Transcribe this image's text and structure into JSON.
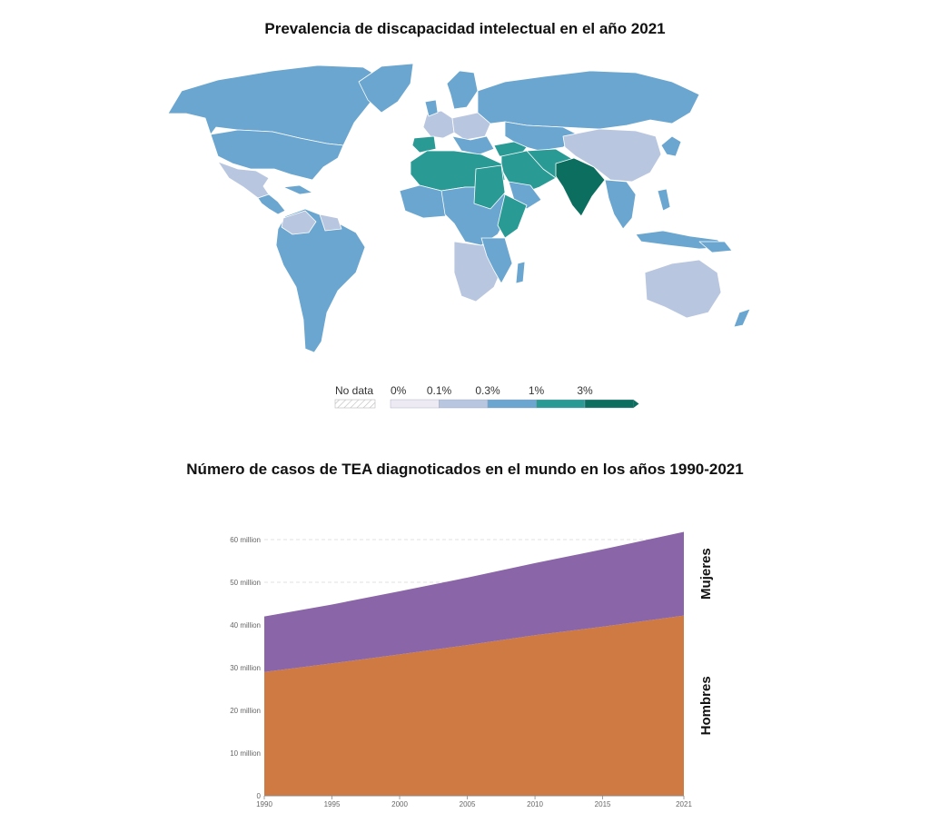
{
  "map": {
    "title": "Prevalencia de discapacidad intelectual en el año 2021",
    "legend": {
      "no_data_label": "No data",
      "thresholds": [
        "0%",
        "0.1%",
        "0.3%",
        "1%",
        "3%"
      ],
      "colors": [
        "#eeeaf4",
        "#b9c6e0",
        "#6aa6cf",
        "#2a9a95",
        "#0b6e5f"
      ],
      "no_data_color": "#e6e6e6"
    },
    "palette": {
      "ocean": "#ffffff",
      "border": "#ffffff"
    }
  },
  "chart_data": {
    "type": "area",
    "title": "Número de casos de TEA diagnoticados en el mundo en los años 1990-2021",
    "stacked": true,
    "x": [
      1990,
      1995,
      2000,
      2005,
      2010,
      2015,
      2021
    ],
    "x_ticks": [
      "1990",
      "1995",
      "2000",
      "2005",
      "2010",
      "2015",
      "2021"
    ],
    "y_ticks": [
      0,
      10,
      20,
      30,
      40,
      50,
      60
    ],
    "y_tick_labels": [
      "0",
      "10 million",
      "20 million",
      "30 million",
      "40 million",
      "50 million",
      "60 million"
    ],
    "ylim": [
      0,
      62
    ],
    "series": [
      {
        "name": "Hombres",
        "color": "#cf7a42",
        "values": [
          29.0,
          31.0,
          33.1,
          35.3,
          37.6,
          39.6,
          42.2
        ]
      },
      {
        "name": "Mujeres",
        "color": "#8a66a8",
        "values": [
          13.0,
          13.8,
          14.8,
          15.8,
          16.9,
          18.1,
          19.6
        ]
      }
    ],
    "grid": true
  }
}
